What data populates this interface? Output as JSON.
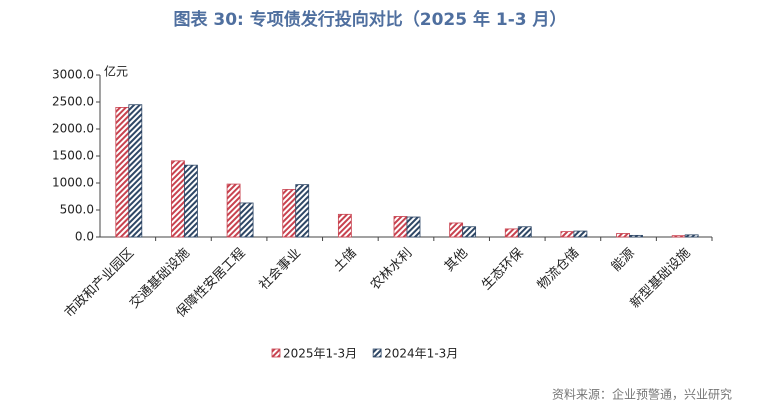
{
  "chart_data": {
    "type": "bar",
    "title": "图表 30: 专项债发行投向对比（2025 年 1-3 月）",
    "y_axis_label": "亿元",
    "source": "资料来源：企业预警通，兴业研究",
    "categories": [
      "市政和产业园区",
      "交通基础设施",
      "保障性安居工程",
      "社会事业",
      "土储",
      "农林水利",
      "其他",
      "生态环保",
      "物流仓储",
      "能源",
      "新型基础设施"
    ],
    "series": [
      {
        "name": "2025年1-3月",
        "color": "#c8424f",
        "values": [
          2400,
          1410,
          980,
          880,
          420,
          380,
          260,
          150,
          100,
          65,
          25
        ]
      },
      {
        "name": "2024年1-3月",
        "color": "#2e4766",
        "values": [
          2450,
          1330,
          630,
          970,
          null,
          370,
          190,
          190,
          110,
          30,
          40
        ]
      }
    ],
    "ylim": [
      0,
      3000
    ],
    "yticks": [
      {
        "value": 0,
        "label": "0.0"
      },
      {
        "value": 500,
        "label": "500.0"
      },
      {
        "value": 1000,
        "label": "1000.0"
      },
      {
        "value": 1500,
        "label": "1500.0"
      },
      {
        "value": 2000,
        "label": "2000.0"
      },
      {
        "value": 2500,
        "label": "2500.0"
      },
      {
        "value": 3000,
        "label": "3000.0"
      }
    ],
    "legend": "bottom"
  }
}
